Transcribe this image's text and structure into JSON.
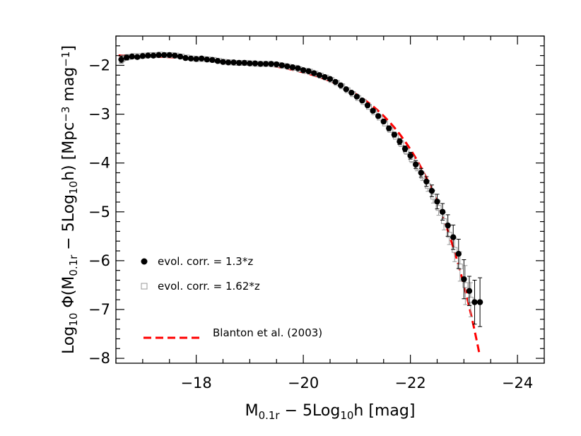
{
  "chart_data": {
    "type": "scatter",
    "x_axis": {
      "title_parts": [
        "M",
        "0.1r",
        " − 5Log",
        "10",
        "h [mag]"
      ],
      "range": [
        -16.5,
        -24.5
      ],
      "ticks": [
        -18,
        -20,
        -22,
        -24
      ],
      "tick_labels": [
        "−18",
        "−20",
        "−22",
        "−24"
      ],
      "minor_step": 0.5
    },
    "y_axis": {
      "title_parts": [
        "Log",
        "10",
        " Φ(M",
        "0.1r",
        " − 5Log",
        "10",
        "h) [Mpc",
        "−3",
        " mag",
        "−1",
        "]"
      ],
      "range": [
        -8.1,
        -1.4
      ],
      "ticks": [
        -2,
        -3,
        -4,
        -5,
        -6,
        -7,
        -8
      ],
      "tick_labels": [
        "−2",
        "−3",
        "−4",
        "−5",
        "−6",
        "−7",
        "−8"
      ],
      "minor_step": 0.2
    },
    "series": [
      {
        "name": "evol. corr. = 1.3*z",
        "marker": "filled-circle",
        "color": "#000000",
        "x": [
          -16.6,
          -16.7,
          -16.8,
          -16.9,
          -17.0,
          -17.1,
          -17.2,
          -17.3,
          -17.4,
          -17.5,
          -17.6,
          -17.7,
          -17.8,
          -17.9,
          -18.0,
          -18.1,
          -18.2,
          -18.3,
          -18.4,
          -18.5,
          -18.6,
          -18.7,
          -18.8,
          -18.9,
          -19.0,
          -19.1,
          -19.2,
          -19.3,
          -19.4,
          -19.5,
          -19.6,
          -19.7,
          -19.8,
          -19.9,
          -20.0,
          -20.1,
          -20.2,
          -20.3,
          -20.4,
          -20.5,
          -20.6,
          -20.7,
          -20.8,
          -20.9,
          -21.0,
          -21.1,
          -21.2,
          -21.3,
          -21.4,
          -21.5,
          -21.6,
          -21.7,
          -21.8,
          -21.9,
          -22.0,
          -22.1,
          -22.2,
          -22.3,
          -22.4,
          -22.5,
          -22.6,
          -22.7,
          -22.8,
          -22.9,
          -23.0,
          -23.1,
          -23.2,
          -23.3
        ],
        "y": [
          -1.88,
          -1.84,
          -1.82,
          -1.83,
          -1.81,
          -1.8,
          -1.8,
          -1.79,
          -1.79,
          -1.79,
          -1.8,
          -1.82,
          -1.85,
          -1.86,
          -1.87,
          -1.86,
          -1.88,
          -1.89,
          -1.91,
          -1.93,
          -1.94,
          -1.94,
          -1.95,
          -1.95,
          -1.96,
          -1.96,
          -1.97,
          -1.97,
          -1.97,
          -1.98,
          -2.0,
          -2.02,
          -2.04,
          -2.06,
          -2.1,
          -2.12,
          -2.16,
          -2.2,
          -2.24,
          -2.28,
          -2.34,
          -2.41,
          -2.49,
          -2.56,
          -2.64,
          -2.72,
          -2.82,
          -2.93,
          -3.04,
          -3.15,
          -3.29,
          -3.42,
          -3.56,
          -3.71,
          -3.85,
          -4.03,
          -4.2,
          -4.38,
          -4.57,
          -4.79,
          -5.0,
          -5.28,
          -5.52,
          -5.86,
          -6.38,
          -6.62,
          -6.85,
          -6.85
        ],
        "yerr": [
          0.07,
          0.05,
          0.04,
          0.04,
          0.03,
          0.03,
          0.03,
          0.03,
          0.03,
          0.03,
          0.03,
          0.02,
          0.02,
          0.02,
          0.02,
          0.02,
          0.02,
          0.02,
          0.02,
          0.02,
          0.02,
          0.02,
          0.02,
          0.02,
          0.02,
          0.02,
          0.02,
          0.02,
          0.02,
          0.02,
          0.02,
          0.02,
          0.02,
          0.02,
          0.02,
          0.02,
          0.02,
          0.02,
          0.02,
          0.02,
          0.02,
          0.02,
          0.02,
          0.02,
          0.03,
          0.03,
          0.03,
          0.03,
          0.04,
          0.04,
          0.05,
          0.05,
          0.06,
          0.06,
          0.07,
          0.08,
          0.09,
          0.1,
          0.12,
          0.15,
          0.17,
          0.22,
          0.25,
          0.3,
          0.4,
          0.3,
          0.45,
          0.5
        ]
      },
      {
        "name": "evol. corr. = 1.62*z",
        "marker": "open-square",
        "color": "#999999",
        "x": [
          -16.6,
          -16.7,
          -16.8,
          -16.9,
          -17.0,
          -17.1,
          -17.2,
          -17.3,
          -17.4,
          -17.5,
          -17.6,
          -17.7,
          -17.8,
          -17.9,
          -18.0,
          -18.1,
          -18.2,
          -18.3,
          -18.4,
          -18.5,
          -18.6,
          -18.7,
          -18.8,
          -18.9,
          -19.0,
          -19.1,
          -19.2,
          -19.3,
          -19.4,
          -19.5,
          -19.6,
          -19.7,
          -19.8,
          -19.9,
          -20.0,
          -20.1,
          -20.2,
          -20.3,
          -20.4,
          -20.5,
          -20.6,
          -20.7,
          -20.8,
          -20.9,
          -21.0,
          -21.1,
          -21.2,
          -21.3,
          -21.4,
          -21.5,
          -21.6,
          -21.7,
          -21.8,
          -21.9,
          -22.0,
          -22.1,
          -22.2,
          -22.3,
          -22.4,
          -22.5,
          -22.6,
          -22.7,
          -22.8,
          -22.9,
          -23.0,
          -23.1
        ],
        "y": [
          -1.86,
          -1.83,
          -1.81,
          -1.81,
          -1.8,
          -1.79,
          -1.79,
          -1.78,
          -1.79,
          -1.79,
          -1.8,
          -1.82,
          -1.84,
          -1.86,
          -1.87,
          -1.87,
          -1.88,
          -1.89,
          -1.91,
          -1.93,
          -1.94,
          -1.95,
          -1.95,
          -1.95,
          -1.96,
          -1.97,
          -1.97,
          -1.97,
          -1.98,
          -1.99,
          -2.01,
          -2.03,
          -2.05,
          -2.08,
          -2.11,
          -2.13,
          -2.17,
          -2.21,
          -2.25,
          -2.3,
          -2.36,
          -2.43,
          -2.51,
          -2.59,
          -2.67,
          -2.75,
          -2.85,
          -2.96,
          -3.07,
          -3.19,
          -3.32,
          -3.46,
          -3.6,
          -3.76,
          -3.92,
          -4.08,
          -4.27,
          -4.47,
          -4.69,
          -4.92,
          -5.19,
          -5.47,
          -5.78,
          -6.12,
          -6.5,
          -6.8
        ],
        "yerr": [
          0.07,
          0.05,
          0.04,
          0.04,
          0.03,
          0.03,
          0.03,
          0.03,
          0.03,
          0.03,
          0.03,
          0.02,
          0.02,
          0.02,
          0.02,
          0.02,
          0.02,
          0.02,
          0.02,
          0.02,
          0.02,
          0.02,
          0.02,
          0.02,
          0.02,
          0.02,
          0.02,
          0.02,
          0.02,
          0.02,
          0.02,
          0.02,
          0.02,
          0.02,
          0.02,
          0.02,
          0.02,
          0.02,
          0.02,
          0.02,
          0.02,
          0.02,
          0.02,
          0.02,
          0.03,
          0.03,
          0.03,
          0.03,
          0.04,
          0.04,
          0.05,
          0.05,
          0.06,
          0.06,
          0.07,
          0.08,
          0.09,
          0.11,
          0.13,
          0.15,
          0.18,
          0.2,
          0.24,
          0.3,
          0.4,
          0.35
        ]
      },
      {
        "name": "Blanton et al. (2003)",
        "marker": "dashed-line",
        "color": "#ff0000",
        "schechter": {
          "Mstar": -20.44,
          "phistar": 0.0149,
          "alpha": -1.05
        },
        "x_range": [
          -16.55,
          -23.3
        ]
      }
    ],
    "legend": {
      "placement": "lower-left",
      "labels": [
        "evol. corr. = 1.3*z",
        "evol. corr. = 1.62*z",
        "Blanton et al. (2003)"
      ]
    },
    "grid": false
  }
}
